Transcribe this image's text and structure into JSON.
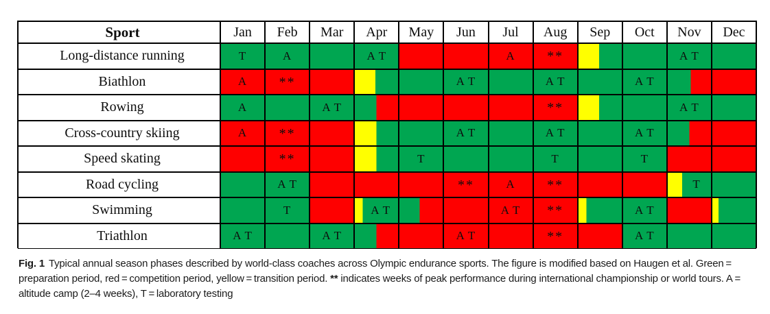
{
  "chart_data": {
    "type": "heatmap-table",
    "title": "Typical annual season phases across Olympic endurance sports",
    "sport_label": "Sport",
    "months": [
      "Jan",
      "Feb",
      "Mar",
      "Apr",
      "May",
      "Jun",
      "Jul",
      "Aug",
      "Sep",
      "Oct",
      "Nov",
      "Dec"
    ],
    "colors": {
      "g": "#00a651",
      "r": "#fe0000",
      "y": "#ffff00"
    },
    "legend": {
      "green": "preparation period",
      "red": "competition period",
      "yellow": "transition period",
      "**": "weeks of peak performance during international championship or world tours",
      "A": "altitude camp (2–4 weeks)",
      "T": "laboratory testing"
    },
    "rows": [
      {
        "sport": "Long-distance running",
        "cells": [
          {
            "bg": "g",
            "label": "T"
          },
          {
            "bg": "g",
            "label": "A"
          },
          {
            "bg": "g"
          },
          {
            "bg": "g",
            "label": "A T"
          },
          {
            "bg": "r"
          },
          {
            "bg": "r"
          },
          {
            "bg": "r",
            "label": "A"
          },
          {
            "bg": "r",
            "label": "**"
          },
          {
            "bg": [
              [
                "y",
                48
              ],
              [
                "g",
                52
              ]
            ]
          },
          {
            "bg": "g"
          },
          {
            "bg": "g",
            "label": "A T"
          },
          {
            "bg": "g"
          }
        ]
      },
      {
        "sport": "Biathlon",
        "cells": [
          {
            "bg": "r",
            "label": "A"
          },
          {
            "bg": "r",
            "label": "**"
          },
          {
            "bg": "r"
          },
          {
            "bg": [
              [
                "y",
                48
              ],
              [
                "g",
                52
              ]
            ]
          },
          {
            "bg": "g"
          },
          {
            "bg": "g",
            "label": "A T"
          },
          {
            "bg": "g"
          },
          {
            "bg": "g",
            "label": "A T"
          },
          {
            "bg": "g"
          },
          {
            "bg": "g",
            "label": "A T"
          },
          {
            "bg": [
              [
                "g",
                53
              ],
              [
                "r",
                47
              ]
            ]
          },
          {
            "bg": "r"
          }
        ]
      },
      {
        "sport": "Rowing",
        "cells": [
          {
            "bg": "g",
            "label": "A"
          },
          {
            "bg": "g"
          },
          {
            "bg": "g",
            "label": "A T"
          },
          {
            "bg": [
              [
                "g",
                50
              ],
              [
                "r",
                50
              ]
            ]
          },
          {
            "bg": "r"
          },
          {
            "bg": "r"
          },
          {
            "bg": "r"
          },
          {
            "bg": "r",
            "label": "**"
          },
          {
            "bg": [
              [
                "y",
                48
              ],
              [
                "g",
                52
              ]
            ]
          },
          {
            "bg": "g"
          },
          {
            "bg": "g",
            "label": "A T"
          },
          {
            "bg": "g"
          }
        ]
      },
      {
        "sport": "Cross-country skiing",
        "cells": [
          {
            "bg": "r",
            "label": "A"
          },
          {
            "bg": "r",
            "label": "**"
          },
          {
            "bg": "r"
          },
          {
            "bg": [
              [
                "y",
                50
              ],
              [
                "g",
                50
              ]
            ]
          },
          {
            "bg": "g"
          },
          {
            "bg": "g",
            "label": "A T"
          },
          {
            "bg": "g"
          },
          {
            "bg": "g",
            "label": "A T"
          },
          {
            "bg": "g"
          },
          {
            "bg": "g",
            "label": "A T"
          },
          {
            "bg": [
              [
                "g",
                50
              ],
              [
                "r",
                50
              ]
            ]
          },
          {
            "bg": "r"
          }
        ]
      },
      {
        "sport": "Speed skating",
        "cells": [
          {
            "bg": "r"
          },
          {
            "bg": "r",
            "label": "**"
          },
          {
            "bg": "r"
          },
          {
            "bg": [
              [
                "y",
                50
              ],
              [
                "g",
                50
              ]
            ]
          },
          {
            "bg": "g",
            "label": "T"
          },
          {
            "bg": "g"
          },
          {
            "bg": "g"
          },
          {
            "bg": "g",
            "label": "T"
          },
          {
            "bg": "g"
          },
          {
            "bg": "g",
            "label": "T"
          },
          {
            "bg": "r"
          },
          {
            "bg": "r"
          }
        ]
      },
      {
        "sport": "Road cycling",
        "cells": [
          {
            "bg": "g"
          },
          {
            "bg": "g",
            "label": "A T"
          },
          {
            "bg": "r"
          },
          {
            "bg": "r"
          },
          {
            "bg": "r"
          },
          {
            "bg": "r",
            "label": "**"
          },
          {
            "bg": "r",
            "label": "A"
          },
          {
            "bg": "r",
            "label": "**"
          },
          {
            "bg": "r"
          },
          {
            "bg": "r"
          },
          {
            "bg": [
              [
                "y",
                33
              ],
              [
                "g",
                67
              ]
            ],
            "label": "T"
          },
          {
            "bg": "g"
          }
        ]
      },
      {
        "sport": "Swimming",
        "cells": [
          {
            "bg": "g"
          },
          {
            "bg": "g",
            "label": "T"
          },
          {
            "bg": "r"
          },
          {
            "bg": [
              [
                "y",
                18
              ],
              [
                "g",
                82
              ]
            ],
            "label": "A T"
          },
          {
            "bg": [
              [
                "g",
                47
              ],
              [
                "r",
                53
              ]
            ]
          },
          {
            "bg": "r"
          },
          {
            "bg": "r",
            "label": "A T"
          },
          {
            "bg": "r",
            "label": "**"
          },
          {
            "bg": [
              [
                "y",
                18
              ],
              [
                "g",
                82
              ]
            ]
          },
          {
            "bg": "g",
            "label": "A T"
          },
          {
            "bg": "r"
          },
          {
            "bg": [
              [
                "y",
                14
              ],
              [
                "g",
                86
              ]
            ]
          }
        ]
      },
      {
        "sport": "Triathlon",
        "cells": [
          {
            "bg": "g",
            "label": "A T"
          },
          {
            "bg": "g"
          },
          {
            "bg": "g",
            "label": "A T"
          },
          {
            "bg": [
              [
                "g",
                50
              ],
              [
                "r",
                50
              ]
            ]
          },
          {
            "bg": "r"
          },
          {
            "bg": "r",
            "label": "A T"
          },
          {
            "bg": "r"
          },
          {
            "bg": "r",
            "label": "**"
          },
          {
            "bg": "r"
          },
          {
            "bg": "g",
            "label": "A T"
          },
          {
            "bg": "g"
          },
          {
            "bg": "g"
          }
        ]
      }
    ]
  },
  "caption": {
    "fig_label": "Fig. 1",
    "part1": "Typical annual season phases described by world-class coaches across Olympic endurance sports. The figure is modified based on Haugen et al. Green = preparation period, red = competition period, yellow = transition period. ",
    "asterisks": "**",
    "part2": " indicates weeks of peak performance during international championship or world tours. A = altitude camp (2–4 weeks), T = laboratory testing"
  }
}
